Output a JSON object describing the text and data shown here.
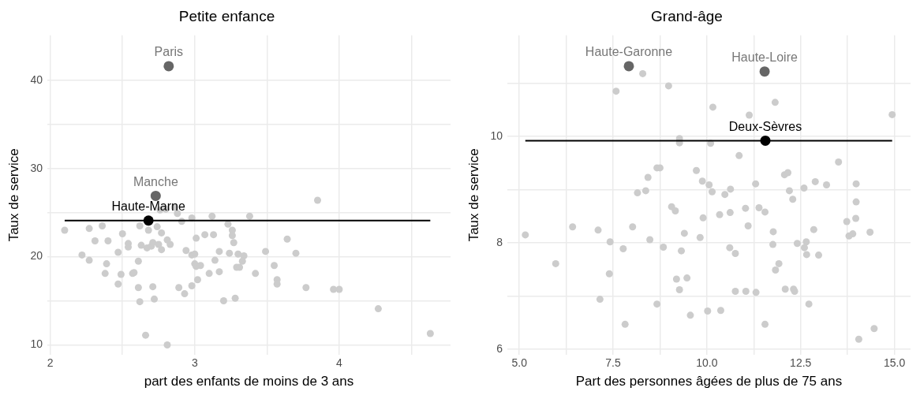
{
  "chart_data": [
    {
      "type": "scatter",
      "title": "Petite enfance",
      "xlabel": "part des enfants de moins de 3 ans",
      "ylabel": "Taux de service",
      "xlim": [
        1.98,
        4.77
      ],
      "ylim": [
        8.9,
        45.1
      ],
      "xticks": [
        2,
        {
          "value": 2.5,
          "label": null
        },
        3,
        {
          "value": 3.5,
          "label": null
        },
        4,
        {
          "value": 4.5,
          "label": null
        }
      ],
      "yticks": [
        10,
        {
          "value": 15,
          "label": null
        },
        20,
        {
          "value": 25,
          "label": null
        },
        30,
        {
          "value": 35,
          "label": null
        },
        40
      ],
      "grid": true,
      "marker": "circle",
      "legend": false,
      "series": [
        {
          "color": "#cccccc",
          "x": [
            2.1,
            2.22,
            2.27,
            2.27,
            2.36,
            2.31,
            2.4,
            2.39,
            2.38,
            2.47,
            2.5,
            2.49,
            2.47,
            2.54,
            2.54,
            2.57,
            2.58,
            2.61,
            2.61,
            2.62,
            2.62,
            2.63,
            2.67,
            2.68,
            2.7,
            2.71,
            2.71,
            2.72,
            2.74,
            2.75,
            2.77,
            2.77,
            2.81,
            2.83,
            2.66,
            2.81,
            2.91,
            2.89,
            2.93,
            2.94,
            2.98,
            3.0,
            2.98,
            3.02,
            3.0,
            3.01,
            3.04,
            3.01,
            3.07,
            3.1,
            3.13,
            3.14,
            3.17,
            3.17,
            3.2,
            3.23,
            3.26,
            3.26,
            3.27,
            3.24,
            3.29,
            3.31,
            3.3,
            3.34,
            3.33,
            3.28,
            3.38,
            3.42,
            3.49,
            3.55,
            3.57,
            3.57,
            3.64,
            3.7,
            3.77,
            3.96,
            4.0,
            4.27,
            4.63,
            3.85,
            2.76,
            2.8,
            2.86,
            2.88,
            2.98,
            3.12
          ],
          "values": [
            23.0,
            20.2,
            23.2,
            19.6,
            23.5,
            21.8,
            21.8,
            19.2,
            18.1,
            20.5,
            22.6,
            18.0,
            16.9,
            21.5,
            21.1,
            18.1,
            18.2,
            19.5,
            16.5,
            14.9,
            23.5,
            21.3,
            21.0,
            23.0,
            21.2,
            21.6,
            16.6,
            15.2,
            23.4,
            21.4,
            22.7,
            20.8,
            21.9,
            21.4,
            11.1,
            10.0,
            24.0,
            16.5,
            15.8,
            20.7,
            20.2,
            20.3,
            16.7,
            17.4,
            19.2,
            18.9,
            19.0,
            22.1,
            22.5,
            18.1,
            22.5,
            19.6,
            20.6,
            18.3,
            15.0,
            23.7,
            23.0,
            22.4,
            21.6,
            20.4,
            18.8,
            18.8,
            20.3,
            20.1,
            19.5,
            15.3,
            24.6,
            18.1,
            20.6,
            19.0,
            17.4,
            16.9,
            22.0,
            20.4,
            16.5,
            16.3,
            16.3,
            14.1,
            11.3,
            26.4,
            25.3,
            25.4,
            25.6,
            24.9,
            24.4,
            24.6
          ]
        },
        {
          "type": "line",
          "marker": "none",
          "color": "#000000",
          "x": [
            2.1,
            4.63
          ],
          "values": [
            24.1,
            24.1
          ]
        },
        {
          "name": "Paris",
          "color": "#666666",
          "x": [
            2.82
          ],
          "values": [
            41.6
          ]
        },
        {
          "name": "Manche",
          "color": "#666666",
          "x": [
            2.73
          ],
          "values": [
            26.9
          ]
        },
        {
          "name": "Haute-Marne",
          "color": "#000000",
          "x": [
            2.68
          ],
          "values": [
            24.1
          ]
        }
      ]
    },
    {
      "type": "scatter",
      "title": "Grand-âge",
      "xlabel": "Part des personnes âgées de plus de 75 ans",
      "ylabel": "Taux de service",
      "xlim": [
        4.68,
        15.43
      ],
      "ylim": [
        5.9,
        11.9
      ],
      "xticks": [
        {
          "value": 5,
          "label": "5.0"
        },
        {
          "value": 6.25,
          "label": null
        },
        7.5,
        {
          "value": 8.75,
          "label": null
        },
        {
          "value": 10,
          "label": "10.0"
        },
        {
          "value": 11.25,
          "label": null
        },
        12.5,
        {
          "value": 13.75,
          "label": null
        },
        {
          "value": 15,
          "label": "15.0"
        }
      ],
      "yticks": [
        6,
        {
          "value": 7,
          "label": null
        },
        8,
        {
          "value": 9,
          "label": null
        },
        10,
        {
          "value": 11,
          "label": null
        }
      ],
      "grid": true,
      "marker": "circle",
      "legend": false,
      "series": [
        {
          "color": "#cccccc",
          "x": [
            8.29,
            7.58,
            8.98,
            10.16,
            11.13,
            11.82,
            14.94,
            9.27,
            9.27,
            10.1,
            10.86,
            13.51,
            8.67,
            8.75,
            9.72,
            12.07,
            12.16,
            8.43,
            9.88,
            10.06,
            11.3,
            12.89,
            13.19,
            13.98,
            8.15,
            8.37,
            10.14,
            10.63,
            10.48,
            12.2,
            12.59,
            12.29,
            13.98,
            9.06,
            9.16,
            11.03,
            11.39,
            11.55,
            10.34,
            10.62,
            9.9,
            11.1,
            13.73,
            13.97,
            12.85,
            11.77,
            13.79,
            13.89,
            14.35,
            5.16,
            6.42,
            7.1,
            8.02,
            9.4,
            9.82,
            8.48,
            7.42,
            11.76,
            12.41,
            12.65,
            12.6,
            12.66,
            12.98,
            8.84,
            7.77,
            9.32,
            10.61,
            10.76,
            11.92,
            11.83,
            5.97,
            7.4,
            9.19,
            9.47,
            9.27,
            10.76,
            11.04,
            11.31,
            12.09,
            12.31,
            12.34,
            7.15,
            8.67,
            12.72,
            9.56,
            10.02,
            10.37,
            7.82,
            11.55,
            14.46,
            14.05
          ],
          "values": [
            11.18,
            10.85,
            10.95,
            10.55,
            10.4,
            10.64,
            10.41,
            9.96,
            9.88,
            9.87,
            9.64,
            9.52,
            9.41,
            9.41,
            9.36,
            9.28,
            9.32,
            9.23,
            9.16,
            9.09,
            9.11,
            9.15,
            9.09,
            9.11,
            8.94,
            8.98,
            8.96,
            9.01,
            8.91,
            8.98,
            9.03,
            8.82,
            8.77,
            8.68,
            8.6,
            8.65,
            8.66,
            8.58,
            8.53,
            8.57,
            8.47,
            8.32,
            8.4,
            8.46,
            8.25,
            8.21,
            8.13,
            8.17,
            8.2,
            8.15,
            8.3,
            8.24,
            8.3,
            8.18,
            8.1,
            8.06,
            8.02,
            7.97,
            7.99,
            8.02,
            7.91,
            7.78,
            7.77,
            7.92,
            7.89,
            7.85,
            7.91,
            7.8,
            7.61,
            7.49,
            7.61,
            7.42,
            7.32,
            7.34,
            7.12,
            7.09,
            7.09,
            7.07,
            7.13,
            7.13,
            7.09,
            6.94,
            6.85,
            6.85,
            6.64,
            6.72,
            6.73,
            6.47,
            6.47,
            6.39,
            6.19
          ]
        },
        {
          "type": "line",
          "marker": "none",
          "color": "#000000",
          "x": [
            5.16,
            14.94
          ],
          "values": [
            9.92,
            9.92
          ]
        },
        {
          "name": "Haute-Garonne",
          "color": "#666666",
          "x": [
            7.92
          ],
          "values": [
            11.32
          ]
        },
        {
          "name": "Haute-Loire",
          "color": "#666666",
          "x": [
            11.54
          ],
          "values": [
            11.22
          ]
        },
        {
          "name": "Deux-Sèvres",
          "color": "#000000",
          "x": [
            11.56
          ],
          "values": [
            9.92
          ]
        }
      ]
    }
  ]
}
